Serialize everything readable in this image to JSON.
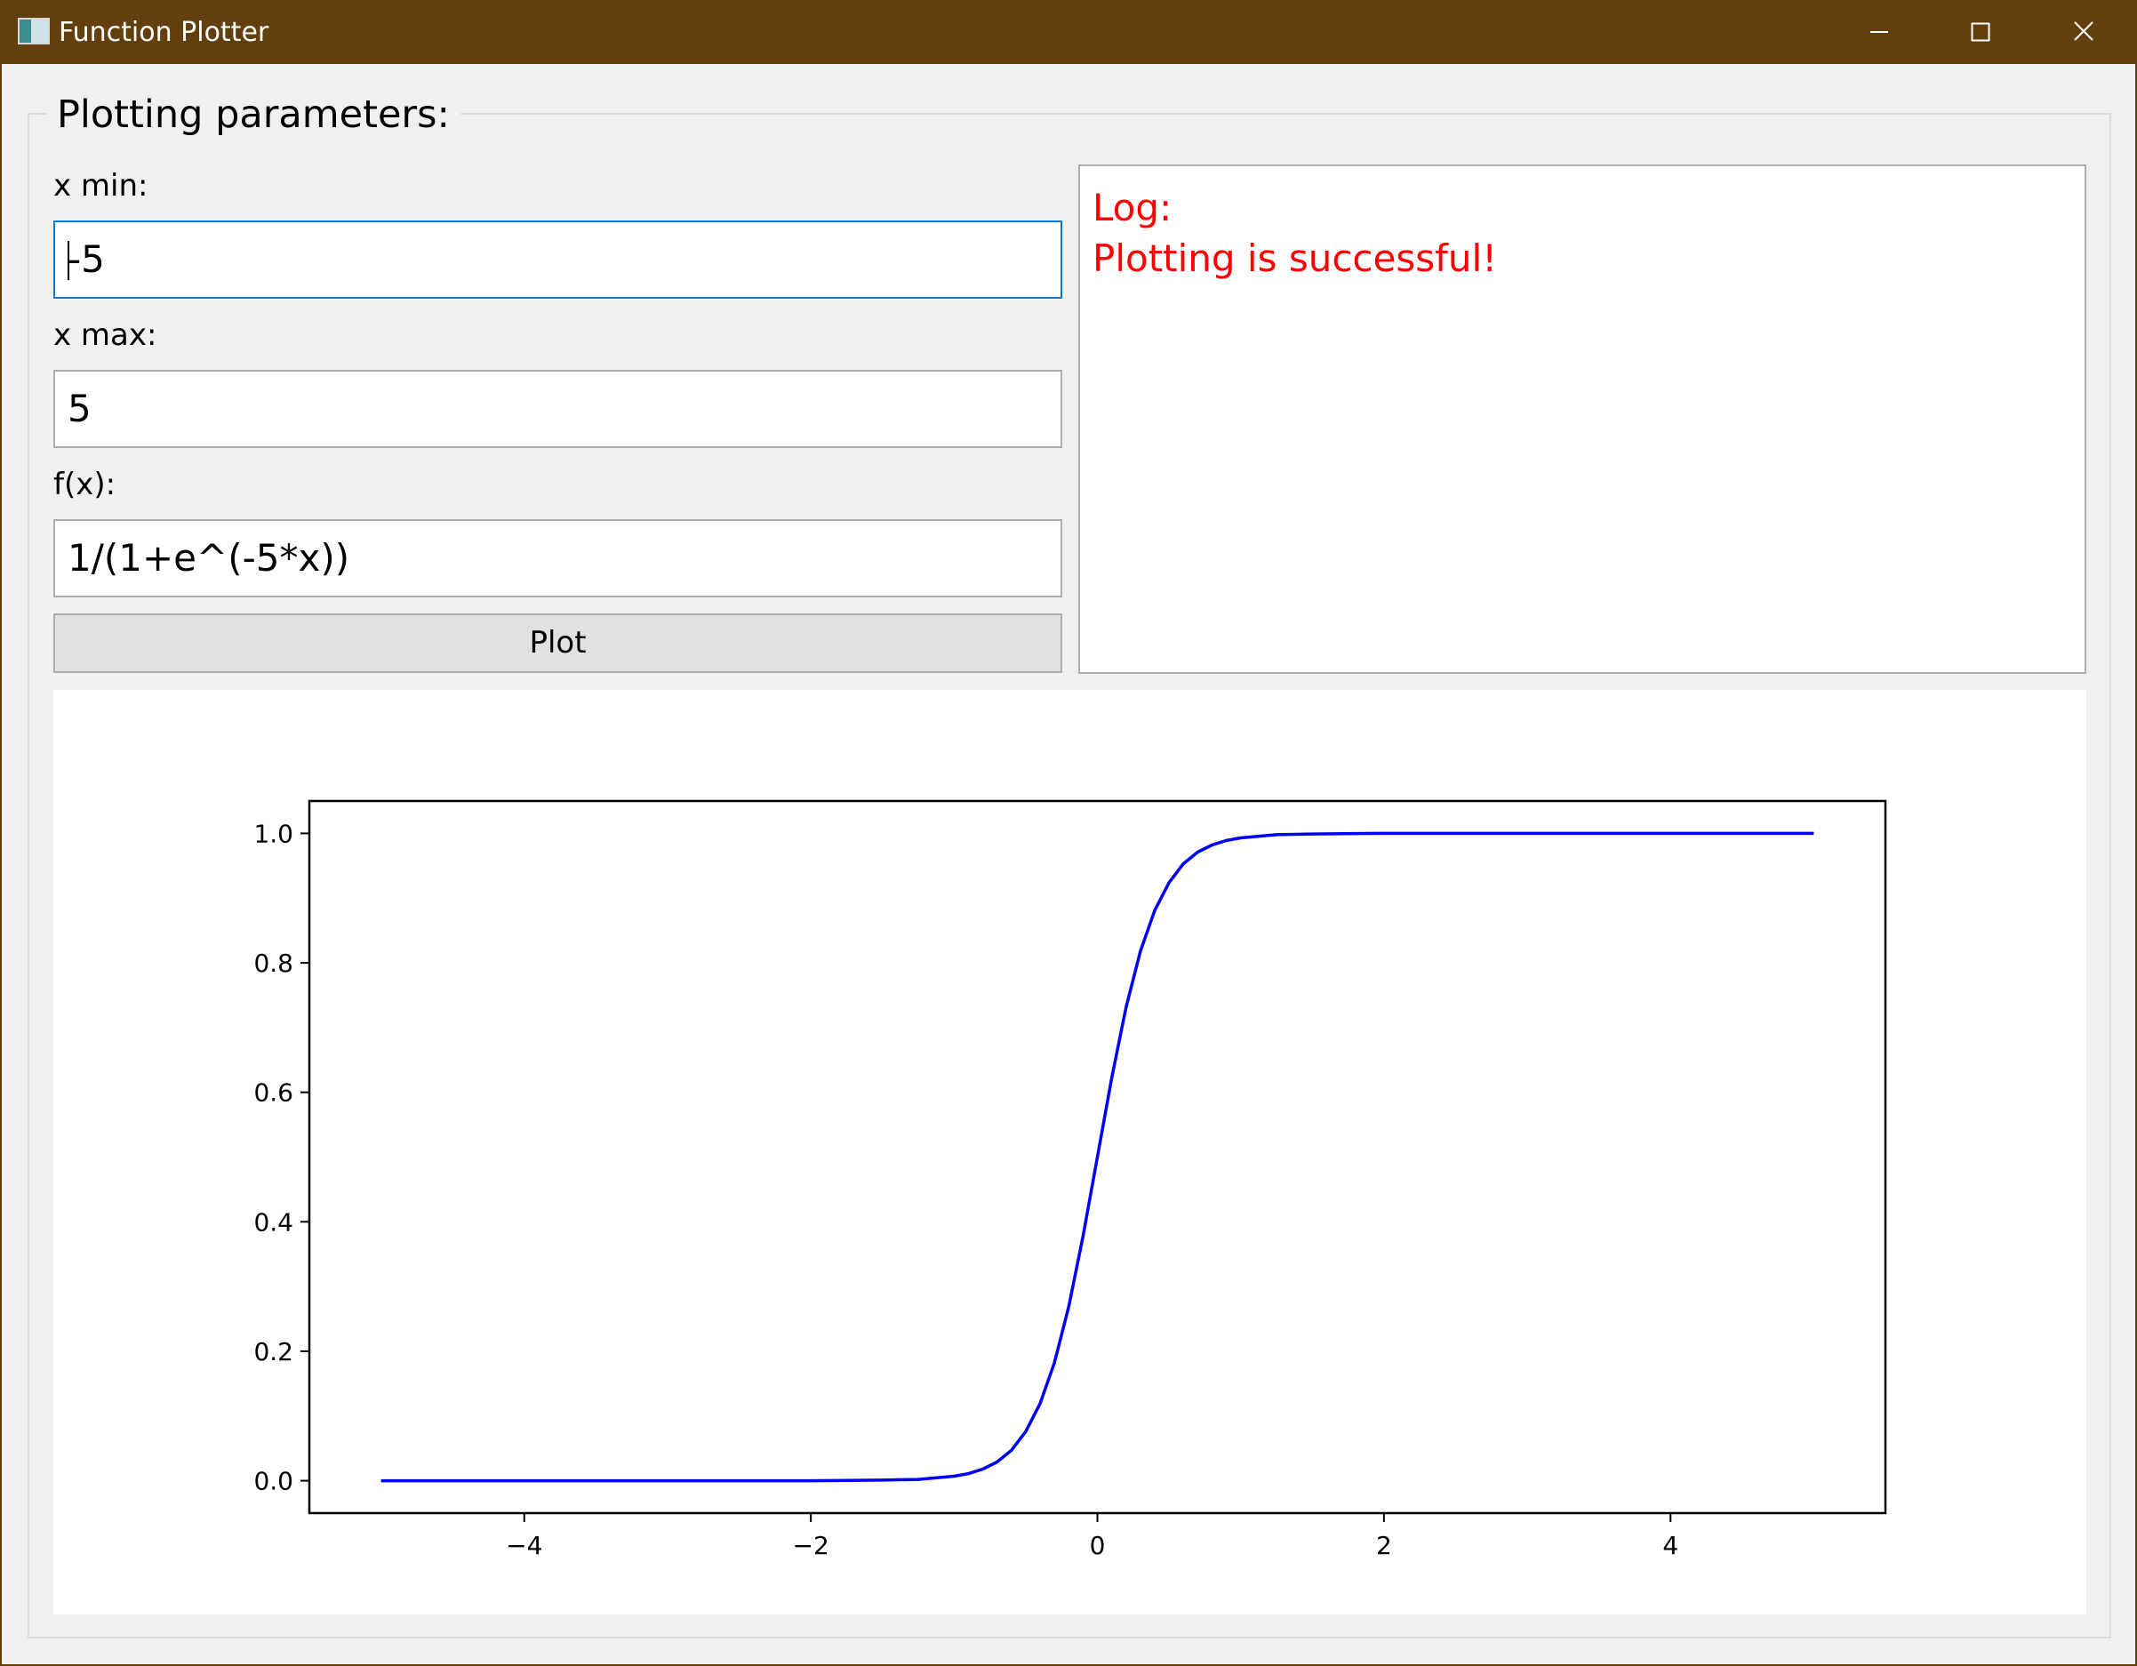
{
  "window": {
    "title": "Function Plotter",
    "titlebar_color": "#633f0e",
    "controls": {
      "minimize": "—",
      "maximize": "☐",
      "close": "✕"
    }
  },
  "params": {
    "group_title": "Plotting parameters:",
    "xmin_label": "x min:",
    "xmin_value": "-5",
    "xmax_label": "x max:",
    "xmax_value": "5",
    "fx_label": "f(x):",
    "fx_value": "1/(1+e^(-5*x))",
    "plot_button": "Plot"
  },
  "log": {
    "title": "Log:",
    "message": "Plotting is successful!",
    "color": "#ff0000"
  },
  "chart_data": {
    "type": "line",
    "function": "1/(1+e^(-5*x))",
    "xlim": [
      -5.5,
      5.5
    ],
    "ylim": [
      -0.05,
      1.05
    ],
    "xticks": [
      -4,
      -2,
      0,
      2,
      4
    ],
    "xtick_labels": [
      "−4",
      "−2",
      "0",
      "2",
      "4"
    ],
    "yticks": [
      0.0,
      0.2,
      0.4,
      0.6,
      0.8,
      1.0
    ],
    "ytick_labels": [
      "0.0",
      "0.2",
      "0.4",
      "0.6",
      "0.8",
      "1.0"
    ],
    "series": [
      {
        "color": "#0000ff",
        "x": [
          -5,
          -4.5,
          -4,
          -3.5,
          -3,
          -2.5,
          -2,
          -1.5,
          -1.25,
          -1,
          -0.9,
          -0.8,
          -0.7,
          -0.6,
          -0.5,
          -0.4,
          -0.3,
          -0.2,
          -0.1,
          0,
          0.1,
          0.2,
          0.3,
          0.4,
          0.5,
          0.6,
          0.7,
          0.8,
          0.9,
          1,
          1.25,
          1.5,
          2,
          2.5,
          3,
          3.5,
          4,
          4.5,
          5
        ],
        "y": [
          0.0,
          0.0,
          0.0,
          0.0,
          0.0,
          0.0,
          0.0,
          0.001,
          0.002,
          0.007,
          0.011,
          0.018,
          0.029,
          0.047,
          0.076,
          0.119,
          0.182,
          0.269,
          0.378,
          0.5,
          0.622,
          0.731,
          0.818,
          0.881,
          0.924,
          0.953,
          0.971,
          0.982,
          0.989,
          0.993,
          0.998,
          0.999,
          1.0,
          1.0,
          1.0,
          1.0,
          1.0,
          1.0,
          1.0
        ]
      }
    ]
  }
}
